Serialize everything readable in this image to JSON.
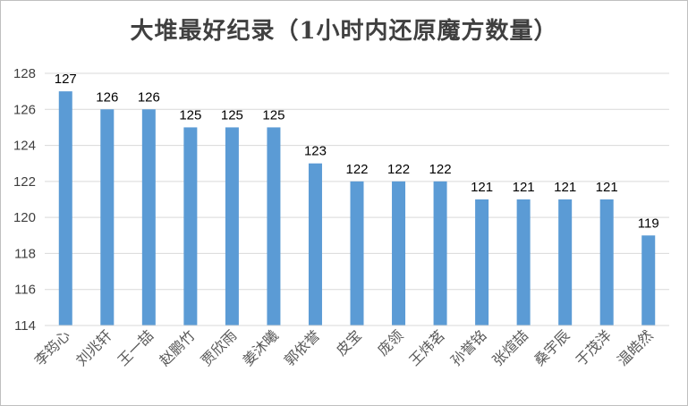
{
  "chart_data": {
    "type": "bar",
    "title": "大堆最好纪录（1小时内还原魔方数量）",
    "xlabel": "",
    "ylabel": "",
    "categories": [
      "李筠心",
      "刘兆轩",
      "王一喆",
      "赵鹏竹",
      "贾欣雨",
      "姜沐曦",
      "郭依誉",
      "皮宝",
      "庞领",
      "王炜茗",
      "孙誉铭",
      "张煊喆",
      "桑宇辰",
      "于茂洋",
      "温皓然"
    ],
    "values": [
      127,
      126,
      126,
      125,
      125,
      125,
      123,
      122,
      122,
      122,
      121,
      121,
      121,
      121,
      119
    ],
    "ylim": [
      114,
      128
    ],
    "yticks": [
      114,
      116,
      118,
      120,
      122,
      124,
      126,
      128
    ],
    "grid": true,
    "bar_color": "#5b9bd5",
    "grid_color": "#d9d9d9"
  }
}
